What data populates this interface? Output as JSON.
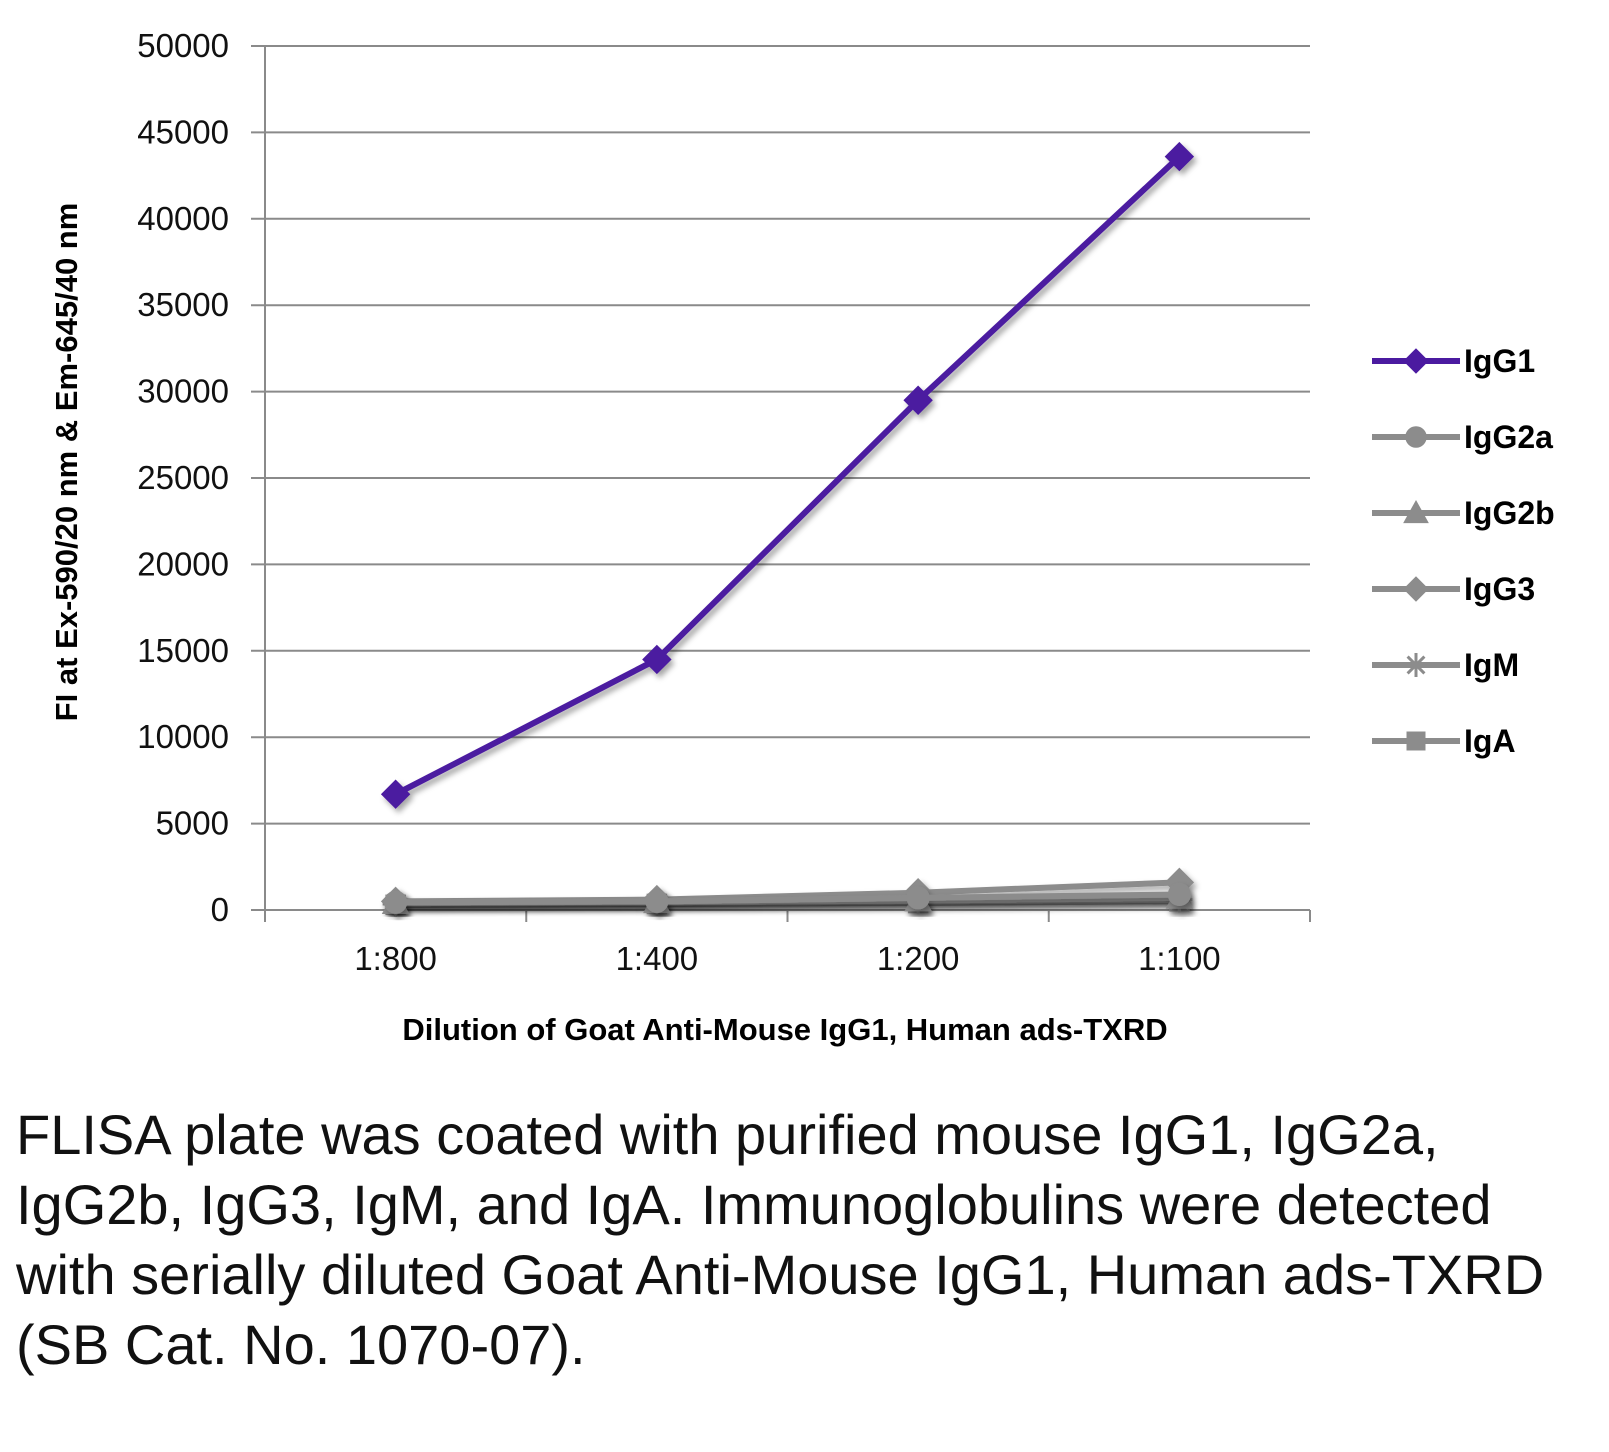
{
  "chart_data": {
    "type": "line",
    "title": "",
    "xlabel": "Dilution of Goat Anti-Mouse IgG1, Human ads-TXRD",
    "ylabel": "FI at Ex-590/20 nm & Em-645/40 nm",
    "categories": [
      "1:800",
      "1:400",
      "1:200",
      "1:100"
    ],
    "ylim": [
      0,
      50000
    ],
    "yticks": [
      0,
      5000,
      10000,
      15000,
      20000,
      25000,
      30000,
      35000,
      40000,
      45000,
      50000
    ],
    "grid": "horizontal",
    "legend": "right",
    "series": [
      {
        "name": "IgG1",
        "marker": "diamond",
        "color": "#4b1aa0",
        "values": [
          6700,
          14500,
          29500,
          43600
        ]
      },
      {
        "name": "IgG2a",
        "marker": "circle",
        "color": "#8c8c8c",
        "values": [
          450,
          500,
          700,
          900
        ]
      },
      {
        "name": "IgG2b",
        "marker": "triangle",
        "color": "#8c8c8c",
        "values": [
          400,
          450,
          550,
          700
        ]
      },
      {
        "name": "IgG3",
        "marker": "diamond",
        "color": "#8c8c8c",
        "values": [
          500,
          600,
          1000,
          1600
        ]
      },
      {
        "name": "IgM",
        "marker": "star",
        "color": "#8c8c8c",
        "values": [
          350,
          400,
          500,
          600
        ]
      },
      {
        "name": "IgA",
        "marker": "square",
        "color": "#8c8c8c",
        "values": [
          300,
          350,
          400,
          500
        ]
      }
    ]
  },
  "caption": "FLISA plate was coated with purified mouse IgG1, IgG2a, IgG2b, IgG3, IgM, and IgA. Immunoglobulins were detected with serially diluted Goat Anti-Mouse IgG1, Human ads-TXRD (SB Cat. No. 1070-07)."
}
